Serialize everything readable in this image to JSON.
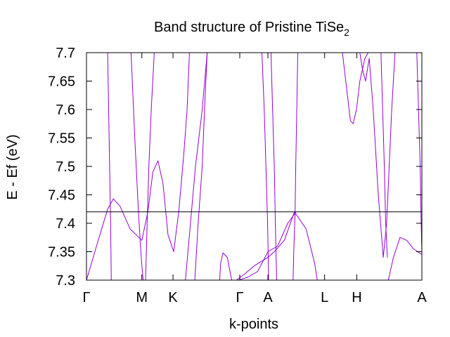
{
  "chart_data": {
    "type": "line",
    "title": "Band structure of Pristine TiSe",
    "title_subscript": "2",
    "xlabel": "k-points",
    "ylabel": "E - Ef (eV)",
    "ylim": [
      7.3,
      7.7
    ],
    "yticks": [
      "7.3",
      "7.35",
      "7.4",
      "7.45",
      "7.5",
      "7.55",
      "7.6",
      "7.65",
      "7.7"
    ],
    "xlim": [
      0,
      1
    ],
    "xticks": [
      {
        "label": "Γ",
        "x": 0.0
      },
      {
        "label": "M",
        "x": 0.165
      },
      {
        "label": "K",
        "x": 0.258
      },
      {
        "label": "Γ",
        "x": 0.457
      },
      {
        "label": "A",
        "x": 0.541
      },
      {
        "label": "L",
        "x": 0.71
      },
      {
        "label": "H",
        "x": 0.806
      },
      {
        "label": "A",
        "x": 1.0
      }
    ],
    "fermi_level": 7.42,
    "grid": false,
    "colors": {
      "bands": "#9400d3",
      "fermi_line": "#000000",
      "frame": "#000000"
    },
    "series": [
      {
        "values": [
          [
            0.063,
            7.7
          ],
          [
            0.066,
            7.6
          ],
          [
            0.069,
            7.5
          ],
          [
            0.072,
            7.4
          ],
          [
            0.074,
            7.3
          ]
        ]
      },
      {
        "values": [
          [
            0.133,
            7.7
          ],
          [
            0.144,
            7.55
          ],
          [
            0.155,
            7.42
          ],
          [
            0.163,
            7.34
          ],
          [
            0.169,
            7.3
          ]
        ]
      },
      {
        "values": [
          [
            0.176,
            7.3
          ],
          [
            0.181,
            7.4
          ],
          [
            0.186,
            7.5
          ],
          [
            0.193,
            7.6
          ],
          [
            0.202,
            7.7
          ]
        ]
      },
      {
        "values": [
          [
            0.0,
            7.3
          ],
          [
            0.03,
            7.36
          ],
          [
            0.063,
            7.425
          ],
          [
            0.08,
            7.443
          ],
          [
            0.1,
            7.43
          ],
          [
            0.13,
            7.39
          ],
          [
            0.165,
            7.37
          ],
          [
            0.183,
            7.42
          ],
          [
            0.198,
            7.49
          ],
          [
            0.213,
            7.51
          ],
          [
            0.228,
            7.47
          ],
          [
            0.243,
            7.38
          ],
          [
            0.26,
            7.35
          ],
          [
            0.275,
            7.42
          ],
          [
            0.29,
            7.52
          ],
          [
            0.3,
            7.6
          ],
          [
            0.307,
            7.7
          ]
        ]
      },
      {
        "values": [
          [
            0.295,
            7.3
          ],
          [
            0.31,
            7.4
          ],
          [
            0.325,
            7.5
          ],
          [
            0.345,
            7.6
          ],
          [
            0.36,
            7.7
          ]
        ]
      },
      {
        "values": [
          [
            0.323,
            7.3
          ],
          [
            0.333,
            7.4
          ],
          [
            0.345,
            7.5
          ],
          [
            0.352,
            7.6
          ],
          [
            0.36,
            7.7
          ]
        ]
      },
      {
        "values": [
          [
            0.397,
            7.3
          ],
          [
            0.4,
            7.33
          ],
          [
            0.407,
            7.348
          ],
          [
            0.42,
            7.34
          ],
          [
            0.433,
            7.3
          ]
        ]
      },
      {
        "values": [
          [
            0.447,
            7.3
          ],
          [
            0.47,
            7.31
          ],
          [
            0.5,
            7.325
          ],
          [
            0.541,
            7.34
          ],
          [
            0.56,
            7.35
          ],
          [
            0.59,
            7.37
          ],
          [
            0.62,
            7.42
          ],
          [
            0.655,
            7.39
          ],
          [
            0.68,
            7.33
          ],
          [
            0.688,
            7.3
          ]
        ]
      },
      {
        "values": [
          [
            0.453,
            7.3
          ],
          [
            0.48,
            7.305
          ],
          [
            0.51,
            7.315
          ],
          [
            0.541,
            7.35
          ],
          [
            0.57,
            7.36
          ],
          [
            0.6,
            7.4
          ],
          [
            0.625,
            7.42
          ]
        ]
      },
      {
        "values": [
          [
            0.523,
            7.7
          ],
          [
            0.53,
            7.6
          ],
          [
            0.535,
            7.5
          ],
          [
            0.54,
            7.4
          ],
          [
            0.543,
            7.3
          ]
        ]
      },
      {
        "values": [
          [
            0.55,
            7.7
          ],
          [
            0.555,
            7.6
          ],
          [
            0.56,
            7.5
          ],
          [
            0.563,
            7.4
          ],
          [
            0.567,
            7.3
          ]
        ]
      },
      {
        "values": [
          [
            0.622,
            7.42
          ],
          [
            0.624,
            7.5
          ],
          [
            0.627,
            7.6
          ],
          [
            0.63,
            7.7
          ]
        ]
      },
      {
        "values": [
          [
            0.616,
            7.3
          ],
          [
            0.618,
            7.35
          ],
          [
            0.622,
            7.42
          ]
        ]
      },
      {
        "values": [
          [
            0.763,
            7.7
          ],
          [
            0.775,
            7.64
          ],
          [
            0.787,
            7.58
          ],
          [
            0.795,
            7.575
          ],
          [
            0.805,
            7.6
          ],
          [
            0.815,
            7.65
          ],
          [
            0.83,
            7.69
          ],
          [
            0.84,
            7.7
          ]
        ]
      },
      {
        "values": [
          [
            0.815,
            7.7
          ],
          [
            0.823,
            7.67
          ],
          [
            0.832,
            7.65
          ],
          [
            0.843,
            7.69
          ],
          [
            0.855,
            7.6
          ],
          [
            0.87,
            7.45
          ],
          [
            0.885,
            7.34
          ],
          [
            0.895,
            7.4
          ],
          [
            0.91,
            7.6
          ],
          [
            0.92,
            7.7
          ]
        ]
      },
      {
        "values": [
          [
            0.878,
            7.7
          ],
          [
            0.883,
            7.6
          ],
          [
            0.888,
            7.5
          ],
          [
            0.892,
            7.4
          ],
          [
            0.897,
            7.34
          ]
        ]
      },
      {
        "values": [
          [
            0.9,
            7.3
          ],
          [
            0.915,
            7.34
          ],
          [
            0.935,
            7.375
          ],
          [
            0.955,
            7.37
          ],
          [
            0.975,
            7.355
          ],
          [
            1.0,
            7.345
          ]
        ]
      },
      {
        "values": [
          [
            0.985,
            7.7
          ],
          [
            0.99,
            7.6
          ],
          [
            0.995,
            7.5
          ],
          [
            0.998,
            7.4
          ],
          [
            1.0,
            7.35
          ]
        ]
      }
    ]
  }
}
